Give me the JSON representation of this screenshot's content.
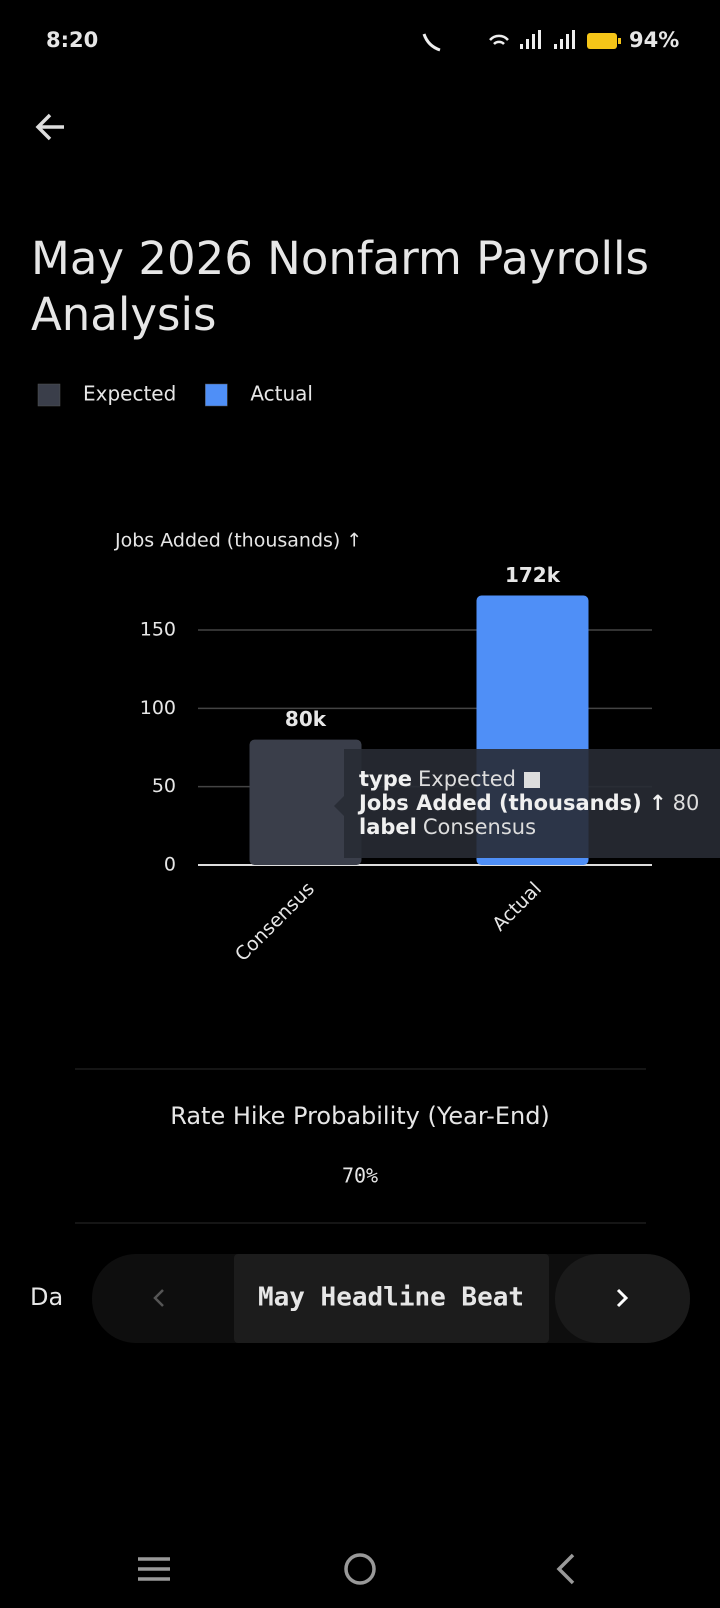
{
  "status_bar": {
    "time": "8:20",
    "battery": "94%"
  },
  "header": {
    "title_lines": [
      "May 2026 Nonfarm Payrolls",
      "Analysis"
    ]
  },
  "chart_data": {
    "type": "bar",
    "y_label": "Jobs Added (thousands) ↑",
    "categories": [
      "Consensus",
      "Actual"
    ],
    "series": [
      {
        "name": "Expected",
        "color": "#3a3e4a",
        "values": [
          80,
          null
        ],
        "value_labels": [
          "80k",
          null
        ]
      },
      {
        "name": "Actual",
        "color": "#4f8ff7",
        "values": [
          null,
          172
        ],
        "value_labels": [
          null,
          "172k"
        ]
      }
    ],
    "ylim": [
      0,
      180
    ],
    "yticks": [
      0,
      50,
      100,
      150
    ],
    "grid": true,
    "tooltip": [
      {
        "key": "type",
        "value": "Expected"
      },
      {
        "key": "Jobs Added (thousands) ↑",
        "value": 80
      },
      {
        "key": "label",
        "value": "Consensus"
      }
    ]
  },
  "metric": {
    "label": "Rate Hike Probability (Year-End)",
    "value": "70%"
  },
  "carousel": {
    "label": "Da",
    "item": "May Headline Beat"
  }
}
